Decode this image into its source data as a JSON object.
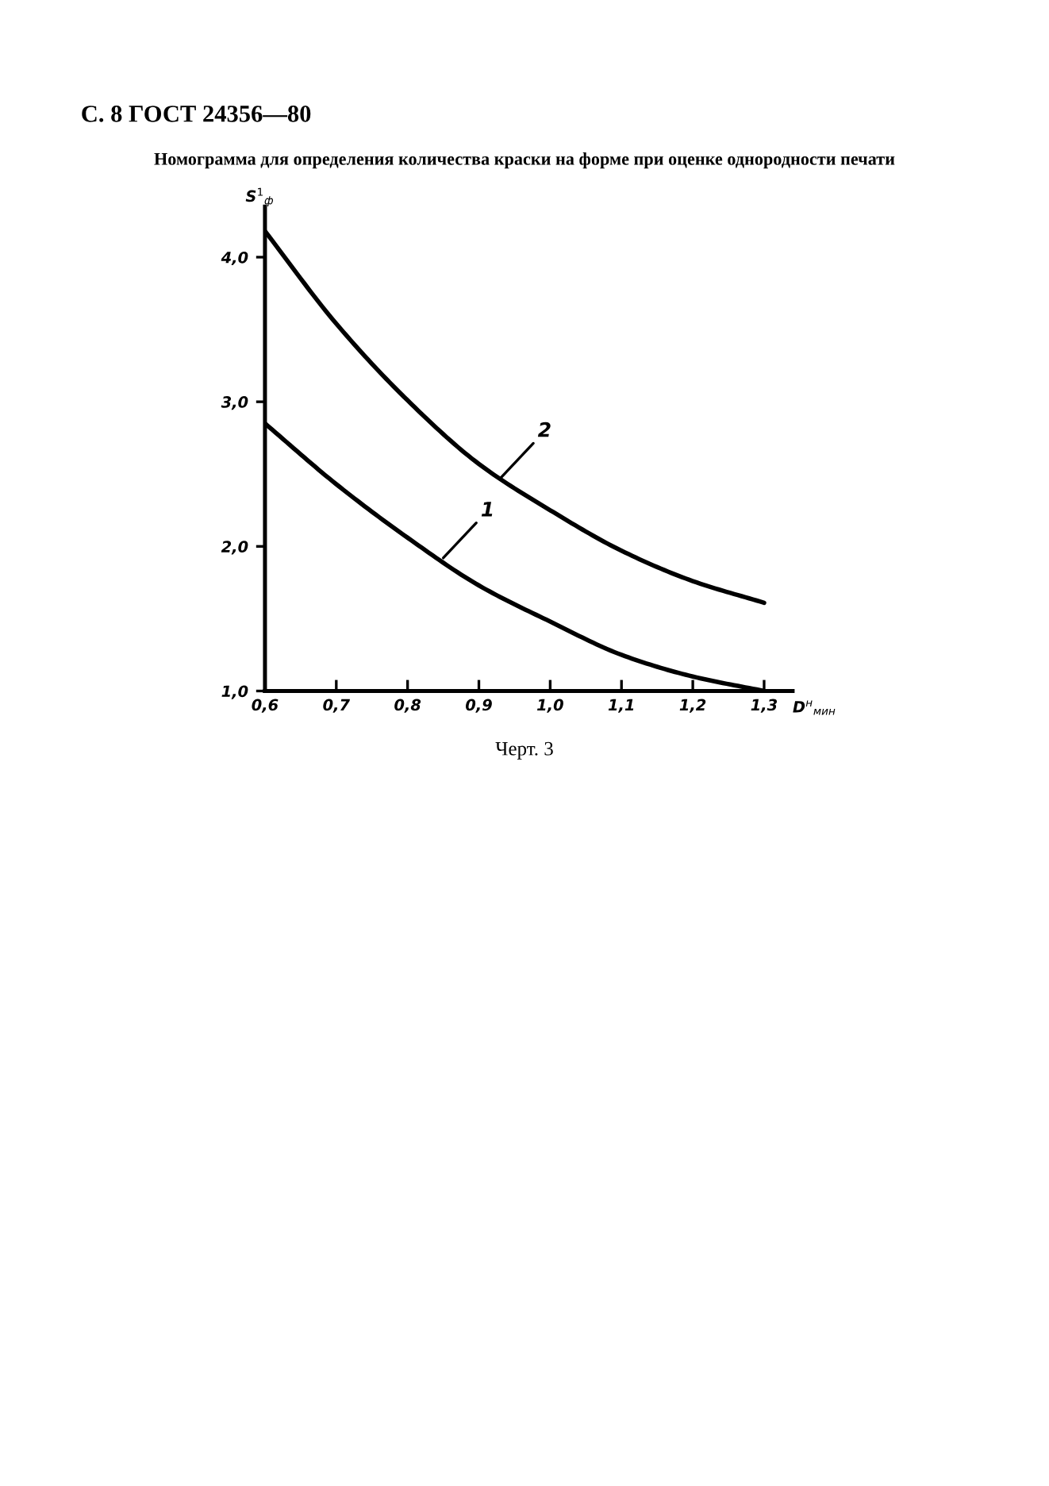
{
  "chart_data": {
    "type": "line",
    "title": "С. 8 ГОСТ 24356—80",
    "subtitle": "Номограмма для определения количества краски на форме при оценке однородности печати",
    "xlabel": "D$^{н}$$_{мин}$",
    "ylabel": "S$^{1}$$_{ф}$",
    "x": [
      0.6,
      0.7,
      0.8,
      0.9,
      1.0,
      1.1,
      1.2,
      1.3
    ],
    "series": [
      {
        "color": "#000000",
        "values": [
          2.85,
          2.43,
          2.06,
          1.73,
          1.48,
          1.25,
          1.1,
          1.0
        ]
      },
      {
        "color": "#000000",
        "values": [
          4.18,
          3.54,
          3.01,
          2.57,
          2.25,
          1.97,
          1.76,
          1.61
        ]
      }
    ],
    "xlim": [
      0.6,
      1.34
    ],
    "ylim": [
      1.0,
      4.35
    ],
    "xticks": [
      {
        "value": 0.6,
        "label": "0,6"
      },
      {
        "value": 0.7,
        "label": "0,7"
      },
      {
        "value": 0.8,
        "label": "0,8"
      },
      {
        "value": 0.9,
        "label": "0,9"
      },
      {
        "value": 1.0,
        "label": "1,0"
      },
      {
        "value": 1.1,
        "label": "1,1"
      },
      {
        "value": 1.2,
        "label": "1,2"
      },
      {
        "value": 1.3,
        "label": "1,3"
      }
    ],
    "yticks": [
      {
        "value": 1.0,
        "label": "1,0"
      },
      {
        "value": 2.0,
        "label": "2,0"
      },
      {
        "value": 3.0,
        "label": "3,0"
      },
      {
        "value": 4.0,
        "label": "4,0"
      }
    ],
    "annotations": [
      {
        "text": "1",
        "x": 0.85,
        "y": 1.92
      },
      {
        "text": "2",
        "x": 0.93,
        "y": 2.47
      },
      "Черт. 3"
    ],
    "grid": false,
    "legend": false,
    "line_style": "solid",
    "marker": "none"
  }
}
